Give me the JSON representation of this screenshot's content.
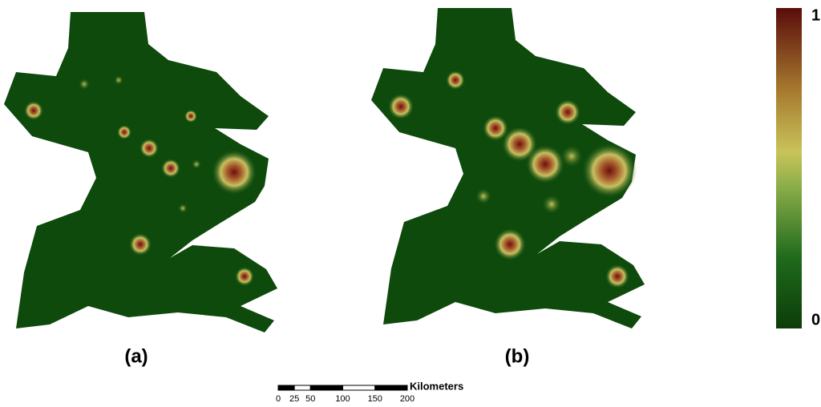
{
  "panels": [
    {
      "label": "(a)"
    },
    {
      "label": "(b)"
    }
  ],
  "legend": {
    "max": 1,
    "min": 0
  },
  "scale_bar": {
    "unit": "Kilometers",
    "ticks": [
      0,
      25,
      50,
      100,
      150,
      200
    ]
  }
}
